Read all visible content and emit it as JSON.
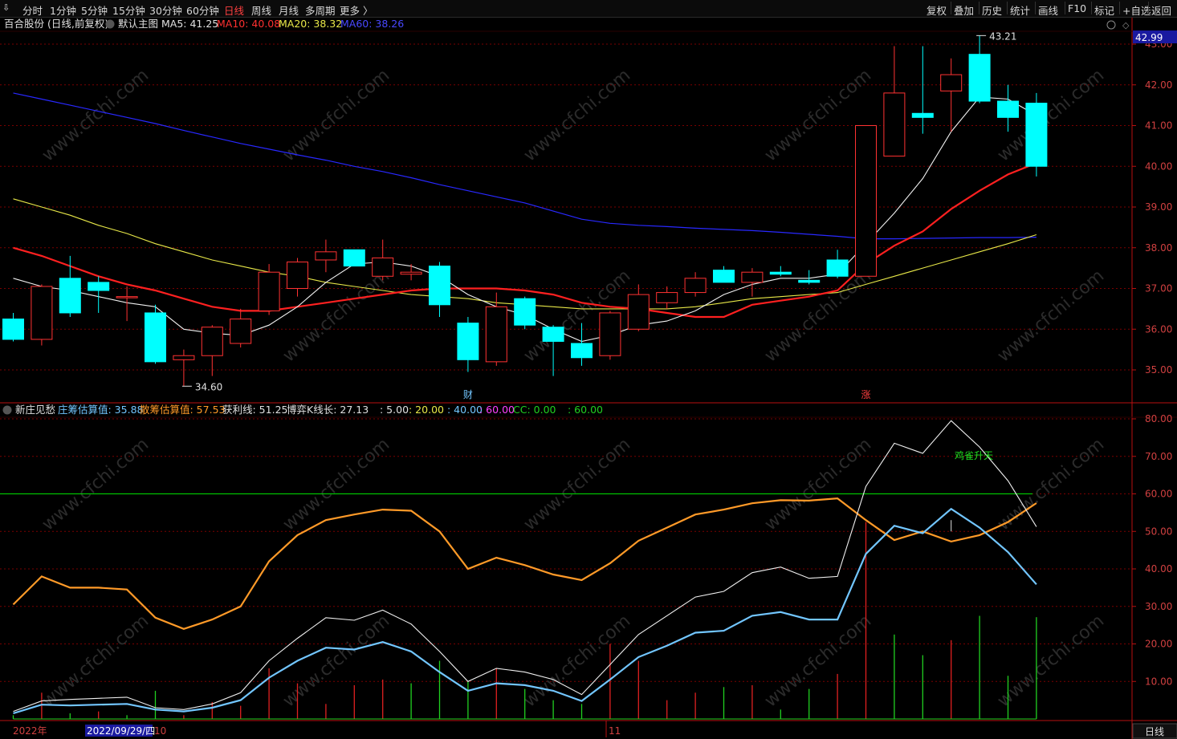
{
  "toolbar": {
    "left_items": [
      {
        "label": "分时",
        "active": false
      },
      {
        "label": "1分钟",
        "active": false
      },
      {
        "label": "5分钟",
        "active": false
      },
      {
        "label": "15分钟",
        "active": false
      },
      {
        "label": "30分钟",
        "active": false
      },
      {
        "label": "60分钟",
        "active": false
      },
      {
        "label": "日线",
        "active": true
      },
      {
        "label": "周线",
        "active": false
      },
      {
        "label": "月线",
        "active": false
      },
      {
        "label": "多周期",
        "active": false
      },
      {
        "label": "更多 〉",
        "active": false
      }
    ],
    "right_items": [
      "复权",
      "叠加",
      "历史",
      "统计",
      "画线",
      "F10",
      "标记",
      "+自选",
      "返回"
    ]
  },
  "colors": {
    "up": "#ff3232",
    "down": "#00ffff",
    "ma5": "#f0f0f0",
    "ma10": "#ff2020",
    "ma20": "#e8e848",
    "ma60": "#2828ff",
    "zhuang": "#72c6ff",
    "sanchou": "#ff9a28",
    "huoli": "#f0f0f0",
    "line60": "#00e000",
    "grid": "#7a0000",
    "axis": "#b81010",
    "axis_text": "#d04040",
    "green_bar": "#20d020",
    "red_bar": "#e02020"
  },
  "main_header": {
    "stock": "百合股份 (日线,前复权)",
    "template": "默认主图",
    "ma5_label": "MA5: 41.25",
    "ma10_label": "MA10: 40.08",
    "ma20_label": "MA20: 38.32",
    "ma60_label": "MA60: 38.26"
  },
  "sub_header": {
    "name": "新庄见愁",
    "items": [
      {
        "text": "庄筹估算值: 35.88",
        "color": "#72c6ff"
      },
      {
        "text": "散筹估算值: 57.53",
        "color": "#ff9a28"
      },
      {
        "text": "获利线: 51.25",
        "color": "#e0e0e0"
      },
      {
        "text": "博弈K线长: 27.13",
        "color": "#e0e0e0"
      },
      {
        "text": ": 5.00",
        "color": "#e0e0e0"
      },
      {
        "text": ": 20.00",
        "color": "#e8e848"
      },
      {
        "text": ": 40.00",
        "color": "#72c6ff"
      },
      {
        "text": ": 60.00",
        "color": "#ff40ff"
      },
      {
        "text": "CC: 0.00",
        "color": "#20d020"
      },
      {
        "text": ": 60.00",
        "color": "#20d020"
      }
    ]
  },
  "price_badge": "42.99",
  "period_label": "日线",
  "date_labels": {
    "year": "2022年",
    "cursor_date": "2022/09/29/四",
    "oct": "10",
    "nov": "11"
  },
  "chart_data": {
    "type": "candlestick",
    "main": {
      "y_ticks": [
        35.0,
        36.0,
        37.0,
        38.0,
        39.0,
        40.0,
        41.0,
        42.0,
        43.0
      ],
      "ylim": [
        34.5,
        43.4
      ],
      "candles": [
        {
          "o": 36.25,
          "c": 35.75,
          "h": 36.4,
          "l": 35.7
        },
        {
          "o": 35.75,
          "c": 37.05,
          "h": 37.1,
          "l": 35.6
        },
        {
          "o": 37.25,
          "c": 36.4,
          "h": 37.8,
          "l": 36.3
        },
        {
          "o": 37.15,
          "c": 36.95,
          "h": 37.3,
          "l": 36.4
        },
        {
          "o": 36.8,
          "c": 36.8,
          "h": 37.05,
          "l": 36.2
        },
        {
          "o": 36.4,
          "c": 35.2,
          "h": 36.6,
          "l": 35.15
        },
        {
          "o": 35.25,
          "c": 35.35,
          "h": 35.5,
          "l": 34.6
        },
        {
          "o": 35.35,
          "c": 36.05,
          "h": 36.1,
          "l": 34.85
        },
        {
          "o": 35.65,
          "c": 36.25,
          "h": 36.5,
          "l": 35.55
        },
        {
          "o": 36.45,
          "c": 37.4,
          "h": 37.6,
          "l": 36.35
        },
        {
          "o": 37.0,
          "c": 37.65,
          "h": 37.75,
          "l": 36.8
        },
        {
          "o": 37.7,
          "c": 37.9,
          "h": 38.2,
          "l": 37.4
        },
        {
          "o": 37.95,
          "c": 37.55,
          "h": 37.95,
          "l": 37.55
        },
        {
          "o": 37.3,
          "c": 37.75,
          "h": 38.2,
          "l": 37.2
        },
        {
          "o": 37.35,
          "c": 37.4,
          "h": 37.6,
          "l": 37.2
        },
        {
          "o": 37.55,
          "c": 36.6,
          "h": 37.65,
          "l": 36.3
        },
        {
          "o": 36.15,
          "c": 35.25,
          "h": 36.3,
          "l": 34.95
        },
        {
          "o": 35.2,
          "c": 36.55,
          "h": 36.9,
          "l": 35.1
        },
        {
          "o": 36.75,
          "c": 36.1,
          "h": 36.8,
          "l": 36.0
        },
        {
          "o": 36.05,
          "c": 35.7,
          "h": 36.1,
          "l": 34.85
        },
        {
          "o": 35.65,
          "c": 35.3,
          "h": 36.15,
          "l": 35.1
        },
        {
          "o": 35.35,
          "c": 36.4,
          "h": 36.45,
          "l": 35.25
        },
        {
          "o": 36.0,
          "c": 36.85,
          "h": 37.1,
          "l": 35.95
        },
        {
          "o": 36.65,
          "c": 36.9,
          "h": 37.05,
          "l": 36.5
        },
        {
          "o": 36.9,
          "c": 37.25,
          "h": 37.4,
          "l": 36.8
        },
        {
          "o": 37.45,
          "c": 37.15,
          "h": 37.55,
          "l": 37.15
        },
        {
          "o": 37.15,
          "c": 37.4,
          "h": 37.5,
          "l": 36.8
        },
        {
          "o": 37.4,
          "c": 37.35,
          "h": 37.55,
          "l": 37.3
        },
        {
          "o": 37.2,
          "c": 37.15,
          "h": 37.45,
          "l": 37.1
        },
        {
          "o": 37.7,
          "c": 37.3,
          "h": 37.95,
          "l": 37.25
        },
        {
          "o": 37.3,
          "c": 41.0,
          "h": 41.0,
          "l": 37.3
        },
        {
          "o": 40.25,
          "c": 41.8,
          "h": 42.95,
          "l": 40.25
        },
        {
          "o": 41.3,
          "c": 41.2,
          "h": 42.95,
          "l": 40.8
        },
        {
          "o": 41.85,
          "c": 42.25,
          "h": 42.65,
          "l": 40.85
        },
        {
          "o": 42.75,
          "c": 41.6,
          "h": 43.21,
          "l": 41.55
        },
        {
          "o": 41.6,
          "c": 41.2,
          "h": 42.0,
          "l": 40.85
        },
        {
          "o": 41.55,
          "c": 40.0,
          "h": 41.8,
          "l": 39.75
        }
      ],
      "ma5": [
        37.25,
        37.05,
        36.95,
        36.8,
        36.65,
        36.55,
        36.0,
        35.9,
        35.85,
        36.1,
        36.55,
        37.15,
        37.6,
        37.65,
        37.55,
        37.3,
        36.85,
        36.55,
        36.35,
        36.0,
        35.7,
        35.85,
        36.1,
        36.2,
        36.45,
        36.85,
        37.1,
        37.25,
        37.25,
        37.35,
        38.1,
        38.85,
        39.7,
        40.85,
        41.7,
        41.65,
        41.25
      ],
      "ma10": [
        38.0,
        37.8,
        37.55,
        37.3,
        37.1,
        36.95,
        36.75,
        36.55,
        36.45,
        36.45,
        36.55,
        36.65,
        36.75,
        36.85,
        36.95,
        37.0,
        37.0,
        37.0,
        36.95,
        36.85,
        36.65,
        36.55,
        36.5,
        36.4,
        36.3,
        36.3,
        36.6,
        36.7,
        36.8,
        36.95,
        37.6,
        38.05,
        38.4,
        38.95,
        39.4,
        39.8,
        40.08
      ],
      "ma20": [
        39.2,
        39.0,
        38.8,
        38.55,
        38.35,
        38.1,
        37.9,
        37.7,
        37.55,
        37.4,
        37.3,
        37.15,
        37.05,
        36.95,
        36.85,
        36.8,
        36.75,
        36.65,
        36.6,
        36.55,
        36.5,
        36.5,
        36.5,
        36.5,
        36.55,
        36.65,
        36.75,
        36.8,
        36.85,
        36.9,
        37.1,
        37.3,
        37.5,
        37.7,
        37.9,
        38.1,
        38.32
      ],
      "ma60": [
        41.8,
        41.65,
        41.5,
        41.35,
        41.2,
        41.05,
        40.88,
        40.72,
        40.56,
        40.42,
        40.28,
        40.15,
        40.0,
        39.87,
        39.72,
        39.55,
        39.4,
        39.25,
        39.1,
        38.9,
        38.7,
        38.6,
        38.55,
        38.52,
        38.48,
        38.45,
        38.42,
        38.38,
        38.33,
        38.28,
        38.22,
        38.22,
        38.23,
        38.24,
        38.25,
        38.25,
        38.26
      ],
      "high_label": "43.21",
      "low_label": "34.60",
      "markers": [
        {
          "index": 16,
          "text": "财"
        },
        {
          "index": 30,
          "text": "涨"
        }
      ]
    },
    "sub": {
      "y_ticks": [
        10.0,
        20.0,
        30.0,
        40.0,
        50.0,
        60.0,
        70.0,
        80.0
      ],
      "ylim": [
        0,
        85
      ],
      "zhuang": [
        1.5,
        3.8,
        3.6,
        3.8,
        4.0,
        2.5,
        2.0,
        3.0,
        5.0,
        11.0,
        15.5,
        19.0,
        18.5,
        20.5,
        18.0,
        12.5,
        7.5,
        9.5,
        9.0,
        7.5,
        4.8,
        10.5,
        16.5,
        19.5,
        23.0,
        23.5,
        27.5,
        28.5,
        26.5,
        26.5,
        44.0,
        51.5,
        49.5,
        56.0,
        51.0,
        44.5,
        35.88
      ],
      "sanchou": [
        30.5,
        38.0,
        35.0,
        35.0,
        34.5,
        27.0,
        24.0,
        26.5,
        30.0,
        42.0,
        49.0,
        53.0,
        54.5,
        55.8,
        55.5,
        50.0,
        40.0,
        43.0,
        41.0,
        38.5,
        37.0,
        41.5,
        47.5,
        51.0,
        54.5,
        55.8,
        57.5,
        58.3,
        58.2,
        58.8,
        53.0,
        47.7,
        50.0,
        47.3,
        49.0,
        52.5,
        57.53
      ],
      "huoli": [
        2.0,
        4.8,
        5.2,
        5.5,
        5.8,
        3.0,
        2.5,
        4.0,
        7.0,
        15.5,
        21.5,
        27.0,
        26.3,
        29.0,
        25.3,
        18.0,
        10.0,
        13.5,
        12.5,
        10.5,
        6.5,
        14.5,
        22.5,
        27.5,
        32.5,
        34.0,
        39.0,
        40.5,
        37.5,
        38.0,
        62.0,
        73.5,
        70.8,
        79.5,
        72.5,
        63.5,
        51.25
      ],
      "bars": [
        {
          "v": 1.0,
          "c": "g"
        },
        {
          "v": 7.0,
          "c": "r"
        },
        {
          "v": 1.5,
          "c": "g"
        },
        {
          "v": 2.0,
          "c": "r"
        },
        {
          "v": 1.0,
          "c": "g"
        },
        {
          "v": 7.5,
          "c": "g"
        },
        {
          "v": 1.0,
          "c": "r"
        },
        {
          "v": 4.5,
          "c": "r"
        },
        {
          "v": 3.5,
          "c": "r"
        },
        {
          "v": 13.5,
          "c": "r"
        },
        {
          "v": 9.5,
          "c": "r"
        },
        {
          "v": 4.0,
          "c": "r"
        },
        {
          "v": 9.0,
          "c": "r"
        },
        {
          "v": 10.5,
          "c": "r"
        },
        {
          "v": 9.5,
          "c": "g"
        },
        {
          "v": 15.5,
          "c": "g"
        },
        {
          "v": 10.0,
          "c": "g"
        },
        {
          "v": 13.5,
          "c": "r"
        },
        {
          "v": 8.0,
          "c": "g"
        },
        {
          "v": 5.0,
          "c": "g"
        },
        {
          "v": 4.0,
          "c": "g"
        },
        {
          "v": 20.0,
          "c": "r"
        },
        {
          "v": 15.5,
          "c": "r"
        },
        {
          "v": 5.0,
          "c": "r"
        },
        {
          "v": 7.0,
          "c": "r"
        },
        {
          "v": 8.5,
          "c": "g"
        },
        {
          "v": 9.0,
          "c": "r"
        },
        {
          "v": 2.5,
          "c": "g"
        },
        {
          "v": 8.0,
          "c": "g"
        },
        {
          "v": 12.0,
          "c": "r"
        },
        {
          "v": 52.5,
          "c": "r"
        },
        {
          "v": 22.5,
          "c": "g"
        },
        {
          "v": 17.0,
          "c": "g"
        },
        {
          "v": 21.0,
          "c": "r"
        },
        {
          "v": 27.5,
          "c": "g"
        },
        {
          "v": 11.5,
          "c": "g"
        },
        {
          "v": 27.13,
          "c": "g"
        }
      ],
      "level_line": 60,
      "annotation": {
        "text": "鸡雀升天",
        "index": 33.8,
        "value": 70
      }
    }
  }
}
